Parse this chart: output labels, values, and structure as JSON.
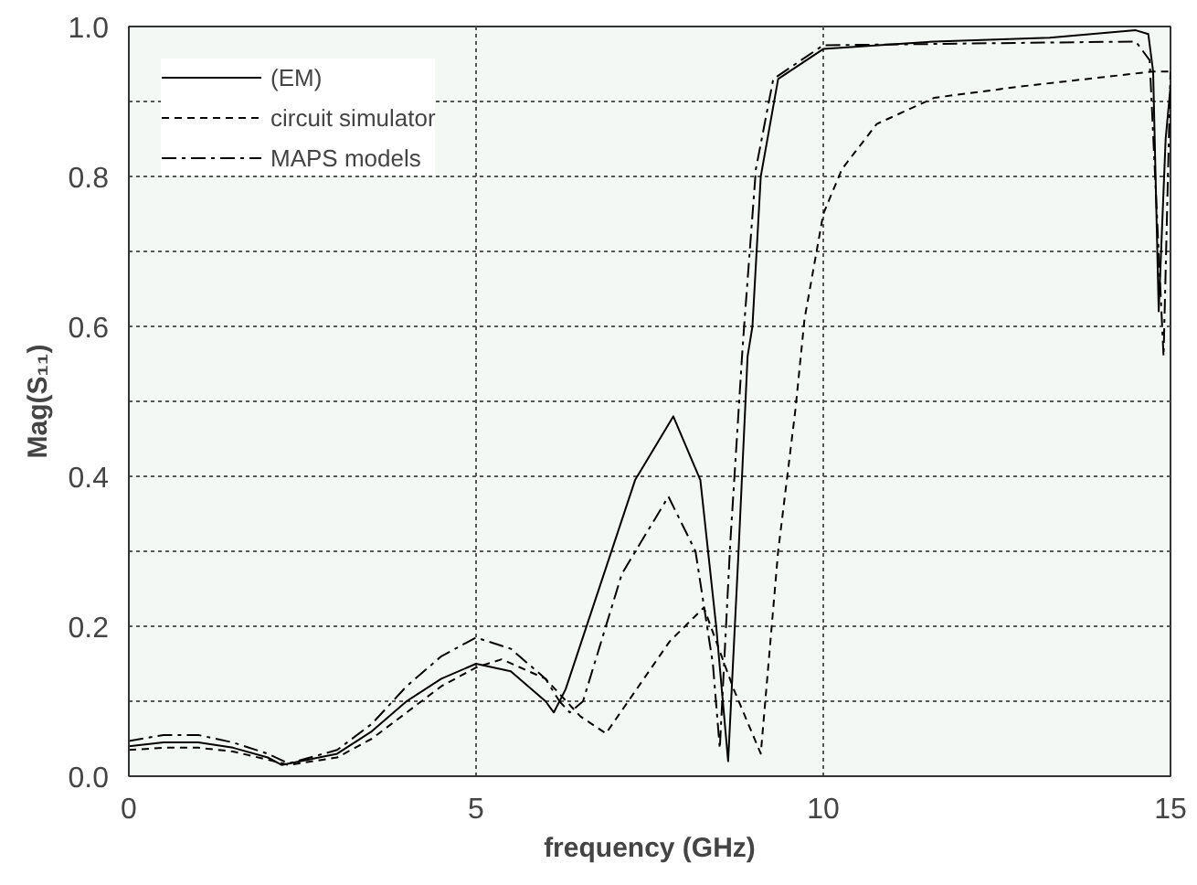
{
  "chart_data": {
    "type": "line",
    "xlabel": "frequency (GHz)",
    "ylabel": "Mag(S₁₁)",
    "xlim": [
      0,
      15
    ],
    "ylim": [
      0,
      1
    ],
    "xticks": [
      0,
      5,
      10,
      15
    ],
    "yticks": [
      {
        "value": 0,
        "label": "0.0"
      },
      {
        "value": 0.1,
        "label": null
      },
      0.2,
      {
        "value": 0.3,
        "label": null
      },
      0.4,
      {
        "value": 0.5,
        "label": null
      },
      0.6,
      {
        "value": 0.7,
        "label": null
      },
      0.8,
      {
        "value": 0.9,
        "label": null
      },
      {
        "value": 1,
        "label": "1.0"
      }
    ],
    "grid": true,
    "legend": "top left",
    "marker": "none",
    "series": [
      {
        "name": "(EM)",
        "color": "#000000",
        "line_style": "solid",
        "x": [
          0,
          0.5,
          1.0,
          1.5,
          2.0,
          2.2,
          3.0,
          3.5,
          4.0,
          4.5,
          5.0,
          5.5,
          6.0,
          6.12,
          6.29,
          7.29,
          7.84,
          8.23,
          8.46,
          8.63,
          8.78,
          8.91,
          8.98,
          9.1,
          9.35,
          10.0,
          11.6,
          13.26,
          14.5,
          14.68,
          14.75,
          14.83,
          14.93,
          15.0
        ],
        "values": [
          0.04,
          0.045,
          0.045,
          0.038,
          0.025,
          0.015,
          0.03,
          0.06,
          0.1,
          0.13,
          0.15,
          0.14,
          0.1,
          0.085,
          0.116,
          0.395,
          0.48,
          0.395,
          0.198,
          0.02,
          0.3,
          0.56,
          0.6,
          0.8,
          0.93,
          0.97,
          0.98,
          0.985,
          0.995,
          0.99,
          0.94,
          0.62,
          0.85,
          0.92
        ]
      },
      {
        "name": "circuit simulator",
        "color": "#000000",
        "line_style": "dashed",
        "x": [
          0,
          0.5,
          1.0,
          1.5,
          2.0,
          2.3,
          3.0,
          3.5,
          4.0,
          4.5,
          5.0,
          5.37,
          6.0,
          6.5,
          6.87,
          7.79,
          8.28,
          8.71,
          9.1,
          9.35,
          9.6,
          9.73,
          10.0,
          10.27,
          10.77,
          11.6,
          12.84,
          14.75,
          15.0
        ],
        "values": [
          0.035,
          0.038,
          0.038,
          0.033,
          0.022,
          0.015,
          0.025,
          0.05,
          0.085,
          0.12,
          0.145,
          0.156,
          0.13,
          0.08,
          0.057,
          0.18,
          0.225,
          0.116,
          0.03,
          0.3,
          0.49,
          0.61,
          0.75,
          0.81,
          0.87,
          0.905,
          0.92,
          0.94,
          0.94
        ]
      },
      {
        "name": "MAPS models",
        "color": "#000000",
        "line_style": "dashdot",
        "x": [
          0,
          0.5,
          1.0,
          1.5,
          2.0,
          2.3,
          3.0,
          3.5,
          4.0,
          4.5,
          5.0,
          5.5,
          6.0,
          6.2,
          6.35,
          6.54,
          7.1,
          7.77,
          8.16,
          8.41,
          8.51,
          8.66,
          8.83,
          8.86,
          9.03,
          9.28,
          10.0,
          14.5,
          14.7,
          14.9,
          15.0
        ],
        "values": [
          0.047,
          0.055,
          0.055,
          0.045,
          0.03,
          0.017,
          0.035,
          0.07,
          0.12,
          0.16,
          0.185,
          0.17,
          0.13,
          0.1,
          0.085,
          0.1,
          0.27,
          0.373,
          0.3,
          0.15,
          0.037,
          0.31,
          0.56,
          0.6,
          0.81,
          0.93,
          0.975,
          0.98,
          0.955,
          0.56,
          0.94
        ]
      }
    ]
  }
}
